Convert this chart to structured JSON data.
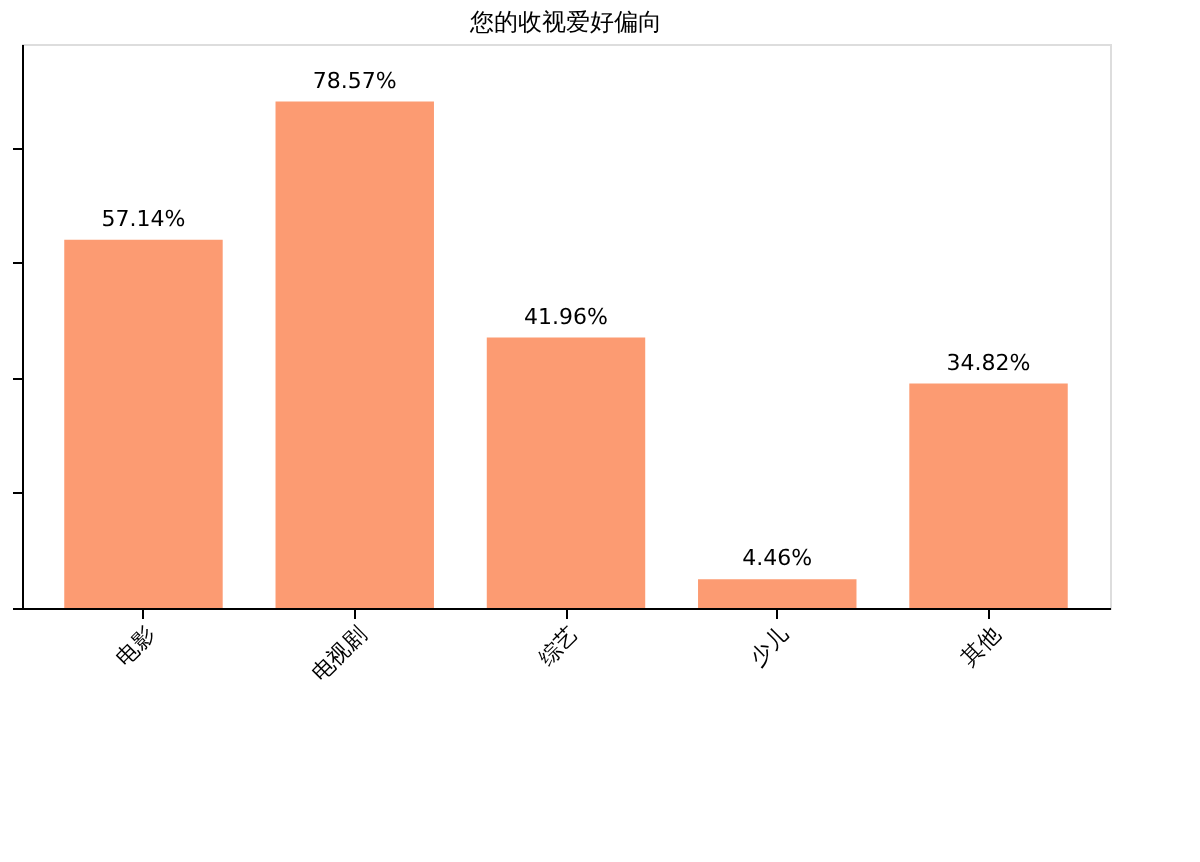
{
  "chart_data": {
    "type": "bar",
    "title": "您的收视爱好偏向",
    "categories": [
      "电影",
      "电视剧",
      "综艺",
      "少儿",
      "其他"
    ],
    "values": [
      57.14,
      78.57,
      41.96,
      4.46,
      34.82
    ],
    "color": "#fc9b72",
    "data_labels": true,
    "value_labels": [
      "57.14%",
      "78.57%",
      "41.96%",
      "4.46%",
      "34.82%"
    ],
    "ylim": [
      0,
      87.5
    ],
    "yticks": [
      {
        "value": 0,
        "label": null
      },
      {
        "value": 17.86,
        "label": null
      },
      {
        "value": 35.71,
        "label": null
      },
      {
        "value": 53.57,
        "label": null
      },
      {
        "value": 71.43,
        "label": null
      }
    ],
    "tick_labels": "x",
    "grid": false
  }
}
